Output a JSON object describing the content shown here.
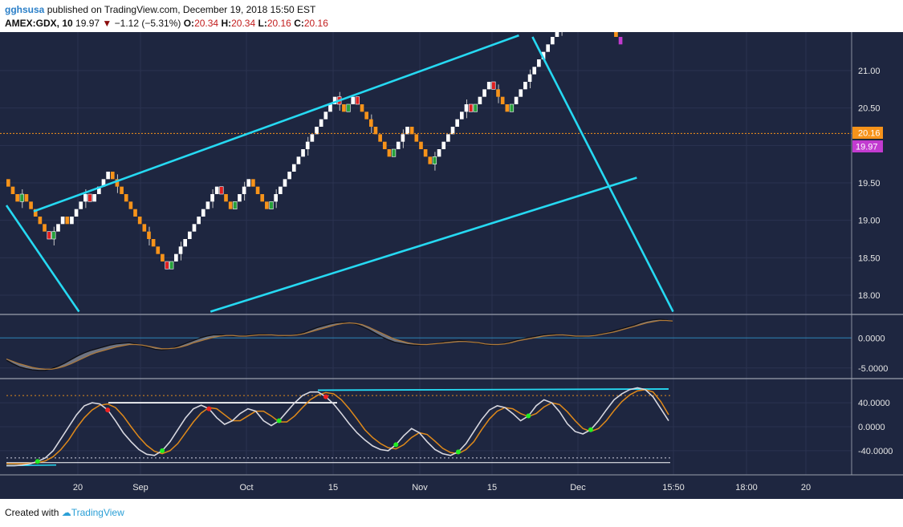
{
  "header": {
    "user": "gghsusa",
    "published_text": "published on TradingView.com, December 19, 2018 15:50 EST",
    "symbol": "AMEX:GDX, 10",
    "last": "19.97",
    "arrow": "▼",
    "change": "−1.12 (−5.31%)",
    "o_label": "O:",
    "o_value": "20.34",
    "h_label": "H:",
    "h_value": "20.34",
    "l_label": "L:",
    "l_value": "20.16",
    "c_label": "C:",
    "c_value": "20.16"
  },
  "footer": {
    "created_with": "Created with",
    "brand": "TradingView"
  },
  "colors": {
    "background": "#1e2640",
    "panel_border": "#9aa0ad",
    "up_brick": "#ffffff",
    "down_brick": "#f7931a",
    "signal_up": "#26a03a",
    "signal_down": "#e01f1f",
    "trendline": "#26d9f2",
    "price_line": "#f7931a",
    "last_tag": "#c23bd0",
    "stoch_k": "#d8d8e0",
    "stoch_d": "#e08a1a"
  },
  "chart_data": {
    "type": "renko",
    "price_axis": {
      "ticks": [
        18.0,
        18.5,
        19.0,
        19.5,
        20.0,
        20.5,
        21.0
      ],
      "labels": [
        "18.00",
        "18.50",
        "19.00",
        "19.50",
        "20.00",
        "20.50",
        "21.00"
      ]
    },
    "time_axis": {
      "labels": [
        "20",
        "Sep",
        "Oct",
        "15",
        "Nov",
        "15",
        "Dec",
        "15:50",
        "18:00",
        "20"
      ]
    },
    "price_tags": {
      "current": "20.16",
      "last": "19.97"
    },
    "brick_size": 0.1,
    "start_price": 19.55,
    "bricks": [
      {
        "d": "D",
        "s": "n"
      },
      {
        "d": "D",
        "s": "n"
      },
      {
        "d": "D",
        "s": "n"
      },
      {
        "d": "U",
        "s": "g"
      },
      {
        "d": "D",
        "s": "n"
      },
      {
        "d": "D",
        "s": "n"
      },
      {
        "d": "D",
        "s": "n"
      },
      {
        "d": "D",
        "s": "n"
      },
      {
        "d": "D",
        "s": "n"
      },
      {
        "d": "D",
        "s": "r"
      },
      {
        "d": "U",
        "s": "g"
      },
      {
        "d": "U",
        "s": "n"
      },
      {
        "d": "U",
        "s": "n"
      },
      {
        "d": "D",
        "s": "n"
      },
      {
        "d": "U",
        "s": "n"
      },
      {
        "d": "U",
        "s": "n"
      },
      {
        "d": "U",
        "s": "n"
      },
      {
        "d": "U",
        "s": "n"
      },
      {
        "d": "D",
        "s": "r"
      },
      {
        "d": "U",
        "s": "n"
      },
      {
        "d": "U",
        "s": "n"
      },
      {
        "d": "U",
        "s": "n"
      },
      {
        "d": "U",
        "s": "n"
      },
      {
        "d": "D",
        "s": "n"
      },
      {
        "d": "D",
        "s": "n"
      },
      {
        "d": "D",
        "s": "n"
      },
      {
        "d": "D",
        "s": "n"
      },
      {
        "d": "D",
        "s": "n"
      },
      {
        "d": "D",
        "s": "n"
      },
      {
        "d": "D",
        "s": "n"
      },
      {
        "d": "D",
        "s": "n"
      },
      {
        "d": "D",
        "s": "n"
      },
      {
        "d": "D",
        "s": "n"
      },
      {
        "d": "D",
        "s": "n"
      },
      {
        "d": "D",
        "s": "n"
      },
      {
        "d": "D",
        "s": "r"
      },
      {
        "d": "U",
        "s": "g"
      },
      {
        "d": "U",
        "s": "n"
      },
      {
        "d": "U",
        "s": "n"
      },
      {
        "d": "U",
        "s": "n"
      },
      {
        "d": "U",
        "s": "n"
      },
      {
        "d": "U",
        "s": "n"
      },
      {
        "d": "U",
        "s": "n"
      },
      {
        "d": "U",
        "s": "n"
      },
      {
        "d": "U",
        "s": "n"
      },
      {
        "d": "U",
        "s": "n"
      },
      {
        "d": "U",
        "s": "n"
      },
      {
        "d": "D",
        "s": "r"
      },
      {
        "d": "D",
        "s": "n"
      },
      {
        "d": "D",
        "s": "n"
      },
      {
        "d": "U",
        "s": "g"
      },
      {
        "d": "U",
        "s": "n"
      },
      {
        "d": "U",
        "s": "n"
      },
      {
        "d": "U",
        "s": "n"
      },
      {
        "d": "D",
        "s": "n"
      },
      {
        "d": "D",
        "s": "n"
      },
      {
        "d": "D",
        "s": "n"
      },
      {
        "d": "D",
        "s": "n"
      },
      {
        "d": "U",
        "s": "g"
      },
      {
        "d": "U",
        "s": "n"
      },
      {
        "d": "U",
        "s": "n"
      },
      {
        "d": "U",
        "s": "n"
      },
      {
        "d": "U",
        "s": "n"
      },
      {
        "d": "U",
        "s": "n"
      },
      {
        "d": "U",
        "s": "n"
      },
      {
        "d": "U",
        "s": "n"
      },
      {
        "d": "U",
        "s": "n"
      },
      {
        "d": "U",
        "s": "n"
      },
      {
        "d": "U",
        "s": "n"
      },
      {
        "d": "U",
        "s": "n"
      },
      {
        "d": "U",
        "s": "n"
      },
      {
        "d": "U",
        "s": "n"
      },
      {
        "d": "U",
        "s": "n"
      },
      {
        "d": "D",
        "s": "r"
      },
      {
        "d": "D",
        "s": "n"
      },
      {
        "d": "U",
        "s": "g"
      },
      {
        "d": "U",
        "s": "n"
      },
      {
        "d": "D",
        "s": "r"
      },
      {
        "d": "D",
        "s": "n"
      },
      {
        "d": "D",
        "s": "n"
      },
      {
        "d": "D",
        "s": "n"
      },
      {
        "d": "D",
        "s": "n"
      },
      {
        "d": "D",
        "s": "n"
      },
      {
        "d": "D",
        "s": "n"
      },
      {
        "d": "D",
        "s": "n"
      },
      {
        "d": "U",
        "s": "g"
      },
      {
        "d": "U",
        "s": "n"
      },
      {
        "d": "U",
        "s": "n"
      },
      {
        "d": "U",
        "s": "n"
      },
      {
        "d": "D",
        "s": "n"
      },
      {
        "d": "D",
        "s": "n"
      },
      {
        "d": "D",
        "s": "n"
      },
      {
        "d": "D",
        "s": "n"
      },
      {
        "d": "D",
        "s": "n"
      },
      {
        "d": "U",
        "s": "g"
      },
      {
        "d": "U",
        "s": "n"
      },
      {
        "d": "U",
        "s": "n"
      },
      {
        "d": "U",
        "s": "n"
      },
      {
        "d": "U",
        "s": "n"
      },
      {
        "d": "U",
        "s": "n"
      },
      {
        "d": "U",
        "s": "n"
      },
      {
        "d": "U",
        "s": "n"
      },
      {
        "d": "D",
        "s": "r"
      },
      {
        "d": "U",
        "s": "g"
      },
      {
        "d": "U",
        "s": "n"
      },
      {
        "d": "U",
        "s": "n"
      },
      {
        "d": "U",
        "s": "n"
      },
      {
        "d": "D",
        "s": "r"
      },
      {
        "d": "D",
        "s": "n"
      },
      {
        "d": "D",
        "s": "n"
      },
      {
        "d": "D",
        "s": "n"
      },
      {
        "d": "U",
        "s": "g"
      },
      {
        "d": "U",
        "s": "n"
      },
      {
        "d": "U",
        "s": "n"
      },
      {
        "d": "U",
        "s": "n"
      },
      {
        "d": "U",
        "s": "n"
      },
      {
        "d": "U",
        "s": "n"
      },
      {
        "d": "U",
        "s": "n"
      },
      {
        "d": "U",
        "s": "n"
      },
      {
        "d": "U",
        "s": "n"
      },
      {
        "d": "U",
        "s": "n"
      },
      {
        "d": "U",
        "s": "n"
      },
      {
        "d": "U",
        "s": "n"
      },
      {
        "d": "U",
        "s": "n"
      },
      {
        "d": "U",
        "s": "n"
      },
      {
        "d": "U",
        "s": "n"
      },
      {
        "d": "U",
        "s": "n"
      },
      {
        "d": "U",
        "s": "n"
      },
      {
        "d": "D",
        "s": "r"
      },
      {
        "d": "D",
        "s": "n"
      },
      {
        "d": "D",
        "s": "n"
      },
      {
        "d": "D",
        "s": "n"
      },
      {
        "d": "D",
        "s": "n"
      },
      {
        "d": "D",
        "s": "n"
      },
      {
        "d": "D",
        "s": "n"
      },
      {
        "d": "D",
        "s": "last"
      }
    ],
    "channel_lines": [
      {
        "from": {
          "i": 6,
          "p": 19.12
        },
        "to": {
          "i": 113,
          "p": 21.47
        }
      },
      {
        "from": {
          "i": 45,
          "p": 17.78
        },
        "to": {
          "i": 139,
          "p": 19.57
        }
      },
      {
        "from": {
          "i": 0,
          "p": 19.2
        },
        "to": {
          "i": 16,
          "p": 17.78
        }
      },
      {
        "from": {
          "i": 116,
          "p": 21.45
        },
        "to": {
          "i": 147,
          "p": 17.78
        }
      }
    ],
    "macd_panel": {
      "ticks": [
        0.0,
        -5.0
      ],
      "labels": [
        "0.0000",
        "-5.0000"
      ],
      "range": [
        -6.5,
        3.5
      ],
      "fast": [
        -3.7,
        -4.3,
        -4.8,
        -5.1,
        -5.3,
        -5.4,
        -5.4,
        -5.1,
        -4.7,
        -4.2,
        -3.6,
        -3.0,
        -2.5,
        -2.1,
        -1.8,
        -1.5,
        -1.2,
        -1.0,
        -0.9,
        -0.8,
        -1.0,
        -1.3,
        -1.6,
        -1.9,
        -2.0,
        -1.9,
        -1.6,
        -1.2,
        -0.8,
        -0.4,
        0.0,
        0.3,
        0.5,
        0.5,
        0.4,
        0.3,
        0.3,
        0.4,
        0.5,
        0.6,
        0.6,
        0.5,
        0.4,
        0.3,
        0.4,
        0.6,
        0.9,
        1.3,
        1.7,
        2.0,
        2.3,
        2.5,
        2.6,
        2.5,
        2.3,
        1.9,
        1.4,
        0.8,
        0.2,
        -0.3,
        -0.7,
        -0.9,
        -1.1,
        -1.2,
        -1.2,
        -1.1,
        -1.0,
        -0.8,
        -0.6,
        -0.5,
        -0.4,
        -0.5,
        -0.7,
        -0.9,
        -1.1,
        -1.2,
        -1.1,
        -0.9,
        -0.6,
        -0.3,
        -0.1,
        0.1,
        0.3,
        0.5,
        0.6,
        0.6,
        0.5,
        0.3,
        0.2,
        0.2,
        0.3,
        0.5,
        0.7,
        0.9,
        1.2,
        1.5,
        1.8,
        2.1,
        2.5,
        2.8,
        3.0,
        3.1,
        3.0,
        2.7
      ],
      "slow": [
        -3.5,
        -3.9,
        -4.3,
        -4.6,
        -4.9,
        -5.1,
        -5.2,
        -5.2,
        -5.0,
        -4.7,
        -4.3,
        -3.8,
        -3.3,
        -2.8,
        -2.4,
        -2.1,
        -1.8,
        -1.5,
        -1.3,
        -1.1,
        -1.1,
        -1.2,
        -1.4,
        -1.6,
        -1.8,
        -1.8,
        -1.7,
        -1.5,
        -1.2,
        -0.8,
        -0.5,
        -0.2,
        0.1,
        0.3,
        0.4,
        0.4,
        0.3,
        0.3,
        0.4,
        0.5,
        0.5,
        0.5,
        0.4,
        0.4,
        0.4,
        0.5,
        0.7,
        1.0,
        1.3,
        1.6,
        1.9,
        2.2,
        2.4,
        2.5,
        2.4,
        2.2,
        1.8,
        1.3,
        0.8,
        0.3,
        -0.2,
        -0.5,
        -0.8,
        -1.0,
        -1.1,
        -1.1,
        -1.0,
        -0.9,
        -0.8,
        -0.7,
        -0.6,
        -0.6,
        -0.7,
        -0.8,
        -1.0,
        -1.1,
        -1.1,
        -1.0,
        -0.8,
        -0.5,
        -0.3,
        -0.1,
        0.1,
        0.3,
        0.4,
        0.5,
        0.5,
        0.4,
        0.3,
        0.3,
        0.3,
        0.4,
        0.6,
        0.8,
        1.0,
        1.3,
        1.6,
        1.9,
        2.2,
        2.5,
        2.7,
        2.9,
        2.9,
        2.8
      ]
    },
    "stoch_panel": {
      "ticks": [
        40.0,
        0.0,
        -40.0
      ],
      "labels": [
        "40.0000",
        "0.0000",
        "-40.0000"
      ],
      "range": [
        -75,
        75
      ],
      "k": [
        -65,
        -65,
        -64,
        -62,
        -58,
        -52,
        -40,
        -20,
        0,
        20,
        35,
        40,
        38,
        28,
        10,
        -10,
        -25,
        -38,
        -46,
        -48,
        -40,
        -25,
        -5,
        15,
        30,
        36,
        30,
        15,
        4,
        10,
        22,
        30,
        26,
        10,
        2,
        10,
        25,
        40,
        52,
        58,
        58,
        50,
        38,
        22,
        5,
        -10,
        -22,
        -32,
        -38,
        -40,
        -30,
        -15,
        -3,
        -10,
        -25,
        -38,
        -45,
        -48,
        -42,
        -28,
        -8,
        12,
        28,
        35,
        32,
        22,
        10,
        18,
        35,
        45,
        40,
        25,
        5,
        -8,
        -12,
        -5,
        10,
        28,
        45,
        55,
        62,
        65,
        62,
        50,
        30,
        10
      ],
      "d": [
        -62,
        -62,
        -62,
        -61,
        -60,
        -57,
        -50,
        -38,
        -22,
        -2,
        15,
        28,
        36,
        38,
        32,
        18,
        0,
        -17,
        -31,
        -41,
        -45,
        -40,
        -28,
        -10,
        8,
        23,
        32,
        30,
        20,
        10,
        10,
        18,
        26,
        26,
        18,
        8,
        8,
        18,
        32,
        45,
        53,
        57,
        55,
        45,
        30,
        13,
        -5,
        -18,
        -28,
        -35,
        -37,
        -30,
        -18,
        -10,
        -13,
        -24,
        -36,
        -43,
        -45,
        -38,
        -25,
        -5,
        13,
        26,
        32,
        30,
        22,
        17,
        22,
        33,
        40,
        37,
        25,
        10,
        -3,
        -8,
        -3,
        10,
        27,
        42,
        53,
        60,
        62,
        58,
        42,
        20
      ]
    }
  }
}
